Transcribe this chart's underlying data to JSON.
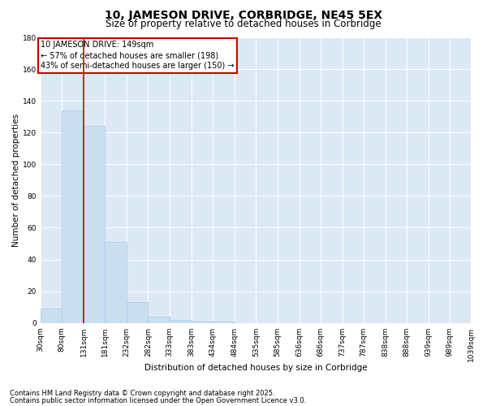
{
  "title": "10, JAMESON DRIVE, CORBRIDGE, NE45 5EX",
  "subtitle": "Size of property relative to detached houses in Corbridge",
  "xlabel": "Distribution of detached houses by size in Corbridge",
  "ylabel": "Number of detached properties",
  "footnote1": "Contains HM Land Registry data © Crown copyright and database right 2025.",
  "footnote2": "Contains public sector information licensed under the Open Government Licence v3.0.",
  "annotation_title": "10 JAMESON DRIVE: 149sqm",
  "annotation_line1": "← 57% of detached houses are smaller (198)",
  "annotation_line2": "43% of semi-detached houses are larger (150) →",
  "property_size_bin": 2,
  "bin_edges": [
    30,
    80,
    131,
    181,
    232,
    282,
    333,
    383,
    434,
    484,
    535,
    585,
    636,
    686,
    737,
    787,
    838,
    888,
    939,
    989,
    1039
  ],
  "bin_labels": [
    "30sqm",
    "80sqm",
    "131sqm",
    "181sqm",
    "232sqm",
    "282sqm",
    "333sqm",
    "383sqm",
    "434sqm",
    "484sqm",
    "535sqm",
    "585sqm",
    "636sqm",
    "686sqm",
    "737sqm",
    "787sqm",
    "838sqm",
    "888sqm",
    "939sqm",
    "989sqm",
    "1039sqm"
  ],
  "counts": [
    9,
    134,
    124,
    51,
    13,
    4,
    2,
    1,
    1,
    0,
    0,
    0,
    0,
    0,
    0,
    0,
    0,
    0,
    0,
    0
  ],
  "bar_color": "#c9dff0",
  "bar_edgecolor": "#a8c8e8",
  "vline_color": "#cc0000",
  "annotation_box_edgecolor": "#cc0000",
  "plot_bg_color": "#dce9f5",
  "fig_bg_color": "#ffffff",
  "grid_color": "#ffffff",
  "ylim": [
    0,
    180
  ],
  "yticks": [
    0,
    20,
    40,
    60,
    80,
    100,
    120,
    140,
    160,
    180
  ],
  "title_fontsize": 10,
  "subtitle_fontsize": 8.5,
  "axis_label_fontsize": 7.5,
  "tick_fontsize": 6.5,
  "annotation_fontsize": 7,
  "footnote_fontsize": 6
}
